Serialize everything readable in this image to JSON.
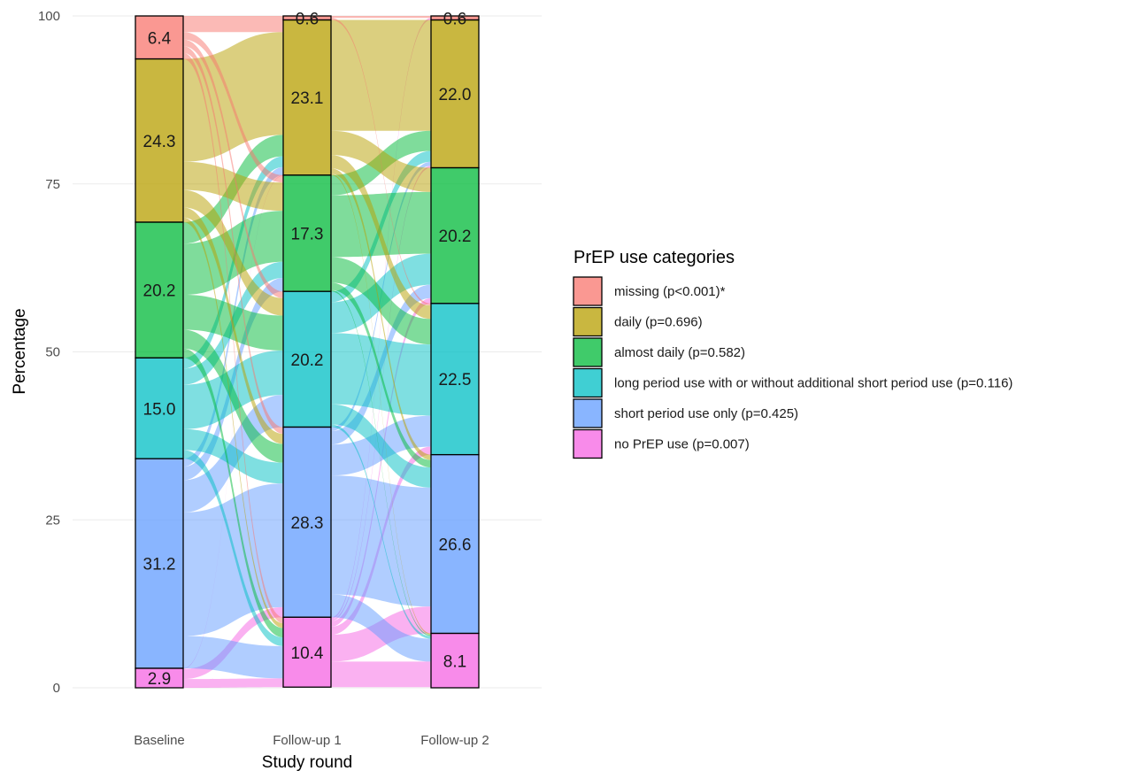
{
  "chart_data": {
    "type": "alluvial",
    "xlabel": "Study round",
    "ylabel": "Percentage",
    "ylim": [
      0,
      100
    ],
    "yticks": [
      "0",
      "25",
      "50",
      "75",
      "100"
    ],
    "grid": true,
    "legend_position": "right",
    "legend_title": "PrEP use categories",
    "rounds": [
      "Baseline",
      "Follow-up 1",
      "Follow-up 2"
    ],
    "categories": [
      {
        "key": "missing",
        "legend": "missing (p<0.001)*",
        "color": "#F8766D"
      },
      {
        "key": "daily",
        "legend": "daily (p=0.696)",
        "color": "#B79F00"
      },
      {
        "key": "almost_daily",
        "legend": "almost daily (p=0.582)",
        "color": "#00BA38"
      },
      {
        "key": "long_period",
        "legend": "long period use with or without additional short period use (p=0.116)",
        "color": "#00BFC4"
      },
      {
        "key": "short_period",
        "legend": "short period use only (p=0.425)",
        "color": "#619CFF"
      },
      {
        "key": "no_prep",
        "legend": "no PrEP use (p=0.007)",
        "color": "#F564E3"
      }
    ],
    "stack_order_top_to_bottom": [
      "missing",
      "daily",
      "almost_daily",
      "long_period",
      "short_period",
      "no_prep"
    ],
    "values": {
      "Baseline": {
        "missing": 6.4,
        "daily": 24.3,
        "almost_daily": 20.2,
        "long_period": 15.0,
        "short_period": 31.2,
        "no_prep": 2.9
      },
      "Follow-up 1": {
        "missing": 0.6,
        "daily": 23.1,
        "almost_daily": 17.3,
        "long_period": 20.2,
        "short_period": 28.3,
        "no_prep": 10.4
      },
      "Follow-up 2": {
        "missing": 0.6,
        "daily": 22.0,
        "almost_daily": 20.2,
        "long_period": 22.5,
        "short_period": 26.6,
        "no_prep": 8.1
      }
    },
    "segment_labels": {
      "Baseline": {
        "missing": "6.4",
        "daily": "24.3",
        "almost_daily": "20.2",
        "long_period": "15.0",
        "short_period": "31.2",
        "no_prep": "2.9"
      },
      "Follow-up 1": {
        "missing": "0.6",
        "daily": "23.1",
        "almost_daily": "17.3",
        "long_period": "20.2",
        "short_period": "28.3",
        "no_prep": "10.4"
      },
      "Follow-up 2": {
        "missing": "0.6",
        "daily": "22.0",
        "almost_daily": "20.2",
        "long_period": "22.5",
        "short_period": "26.6",
        "no_prep": "8.1"
      }
    },
    "flows": [
      {
        "from_round": "Baseline",
        "to_round": "Follow-up 1",
        "pairs": [
          [
            "missing",
            "missing",
            0.6
          ],
          [
            "missing",
            "daily",
            1.8
          ],
          [
            "missing",
            "almost_daily",
            1.1
          ],
          [
            "missing",
            "long_period",
            1.0
          ],
          [
            "missing",
            "short_period",
            1.0
          ],
          [
            "missing",
            "no_prep",
            0.9
          ],
          [
            "daily",
            "daily",
            15.3
          ],
          [
            "daily",
            "almost_daily",
            4.2
          ],
          [
            "daily",
            "long_period",
            2.6
          ],
          [
            "daily",
            "short_period",
            1.5
          ],
          [
            "daily",
            "no_prep",
            0.7
          ],
          [
            "almost_daily",
            "daily",
            3.2
          ],
          [
            "almost_daily",
            "almost_daily",
            7.6
          ],
          [
            "almost_daily",
            "long_period",
            5.2
          ],
          [
            "almost_daily",
            "short_period",
            2.8
          ],
          [
            "almost_daily",
            "no_prep",
            1.4
          ],
          [
            "long_period",
            "daily",
            1.6
          ],
          [
            "long_period",
            "almost_daily",
            2.4
          ],
          [
            "long_period",
            "long_period",
            6.6
          ],
          [
            "long_period",
            "short_period",
            3.1
          ],
          [
            "long_period",
            "no_prep",
            1.3
          ],
          [
            "short_period",
            "daily",
            1.2
          ],
          [
            "short_period",
            "almost_daily",
            2.0
          ],
          [
            "short_period",
            "long_period",
            4.8
          ],
          [
            "short_period",
            "short_period",
            18.4
          ],
          [
            "short_period",
            "no_prep",
            4.8
          ],
          [
            "no_prep",
            "short_period",
            1.5
          ],
          [
            "no_prep",
            "no_prep",
            1.3
          ],
          [
            "no_prep",
            "daily",
            0.1
          ]
        ]
      },
      {
        "from_round": "Follow-up 1",
        "to_round": "Follow-up 2",
        "pairs": [
          [
            "missing",
            "missing",
            0.3
          ],
          [
            "missing",
            "long_period",
            0.3
          ],
          [
            "daily",
            "daily",
            16.5
          ],
          [
            "daily",
            "almost_daily",
            3.6
          ],
          [
            "daily",
            "long_period",
            2.0
          ],
          [
            "daily",
            "short_period",
            0.8
          ],
          [
            "daily",
            "no_prep",
            0.2
          ],
          [
            "almost_daily",
            "daily",
            3.0
          ],
          [
            "almost_daily",
            "almost_daily",
            9.2
          ],
          [
            "almost_daily",
            "long_period",
            3.8
          ],
          [
            "almost_daily",
            "short_period",
            1.1
          ],
          [
            "almost_daily",
            "no_prep",
            0.2
          ],
          [
            "long_period",
            "daily",
            1.6
          ],
          [
            "long_period",
            "almost_daily",
            4.6
          ],
          [
            "long_period",
            "long_period",
            10.6
          ],
          [
            "long_period",
            "short_period",
            3.0
          ],
          [
            "long_period",
            "no_prep",
            0.4
          ],
          [
            "short_period",
            "daily",
            0.6
          ],
          [
            "short_period",
            "almost_daily",
            2.0
          ],
          [
            "short_period",
            "long_period",
            4.6
          ],
          [
            "short_period",
            "short_period",
            17.7
          ],
          [
            "short_period",
            "no_prep",
            3.4
          ],
          [
            "no_prep",
            "missing",
            0.3
          ],
          [
            "no_prep",
            "daily",
            0.3
          ],
          [
            "no_prep",
            "almost_daily",
            0.8
          ],
          [
            "no_prep",
            "long_period",
            1.2
          ],
          [
            "no_prep",
            "short_period",
            4.0
          ],
          [
            "no_prep",
            "no_prep",
            3.8
          ]
        ]
      }
    ]
  }
}
